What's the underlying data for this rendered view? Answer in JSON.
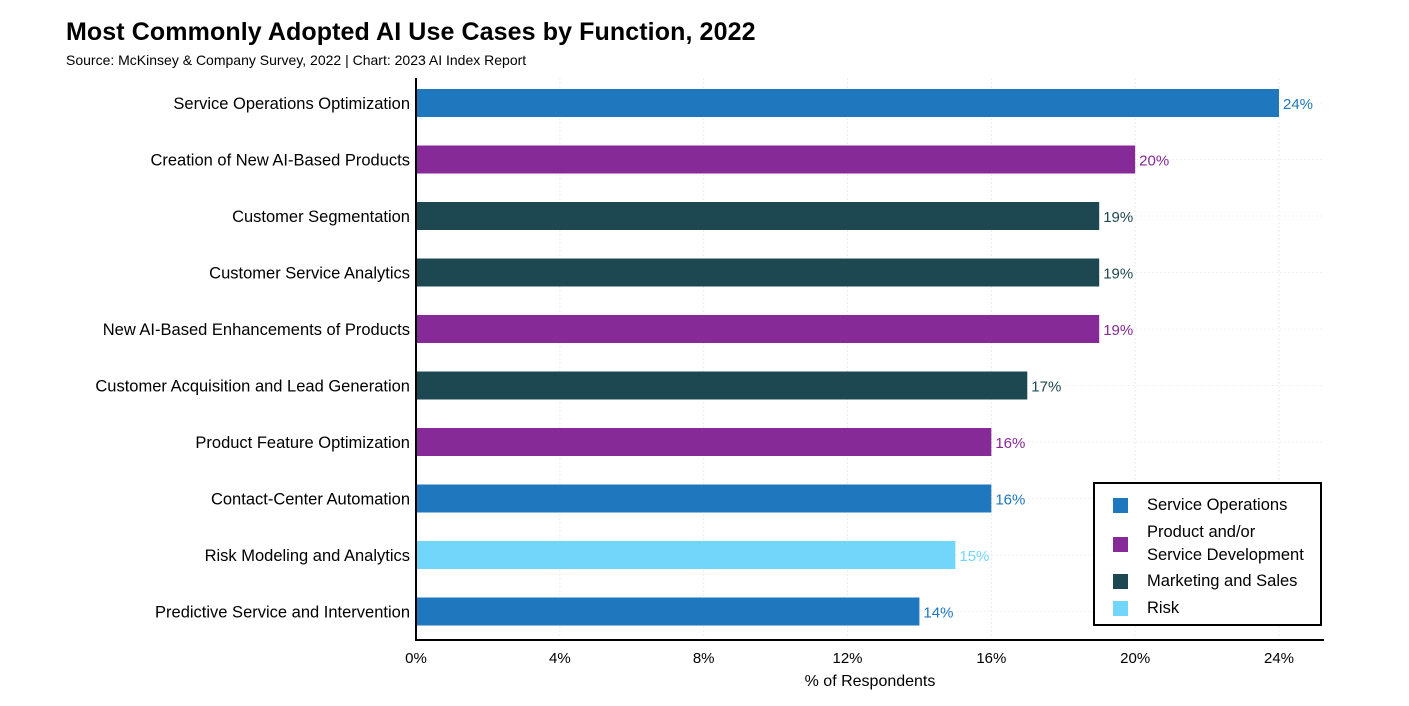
{
  "title": "Most Commonly Adopted AI Use Cases by Function, 2022",
  "subtitle": "Source: McKinsey & Company Survey, 2022 | Chart: 2023 AI Index Report",
  "chart_data": {
    "type": "bar",
    "orientation": "horizontal",
    "title": "Most Commonly Adopted AI Use Cases by Function, 2022",
    "xlabel": "% of Respondents",
    "ylabel": "",
    "xlim": [
      0,
      24
    ],
    "xticks": [
      "0%",
      "4%",
      "8%",
      "12%",
      "16%",
      "20%",
      "24%"
    ],
    "xtick_values": [
      0,
      4,
      8,
      12,
      16,
      20,
      24
    ],
    "grid": true,
    "legend_position": "bottom-right",
    "categories": [
      "Service Operations Optimization",
      "Creation of New AI-Based Products",
      "Customer Segmentation",
      "Customer Service Analytics",
      "New AI-Based Enhancements of Products",
      "Customer Acquisition and Lead Generation",
      "Product Feature Optimization",
      "Contact-Center Automation",
      "Risk Modeling and Analytics",
      "Predictive Service and Intervention"
    ],
    "values": [
      24,
      20,
      19,
      19,
      19,
      17,
      16,
      16,
      15,
      14
    ],
    "value_labels": [
      "24%",
      "20%",
      "19%",
      "19%",
      "19%",
      "17%",
      "16%",
      "16%",
      "15%",
      "14%"
    ],
    "functions": [
      "Service Operations",
      "Product and/or Service Development",
      "Marketing and Sales",
      "Marketing and Sales",
      "Product and/or Service Development",
      "Marketing and Sales",
      "Product and/or Service Development",
      "Service Operations",
      "Risk",
      "Service Operations"
    ]
  },
  "legend": {
    "items": [
      {
        "name": "Service Operations",
        "lines": [
          "Service Operations"
        ],
        "color": "#1f77be"
      },
      {
        "name": "Product and/or Service Development",
        "lines": [
          "Product and/or",
          "Service Development"
        ],
        "color": "#862a97"
      },
      {
        "name": "Marketing and Sales",
        "lines": [
          "Marketing and Sales"
        ],
        "color": "#1e4851"
      },
      {
        "name": "Risk",
        "lines": [
          "Risk"
        ],
        "color": "#72d6fb"
      }
    ]
  }
}
